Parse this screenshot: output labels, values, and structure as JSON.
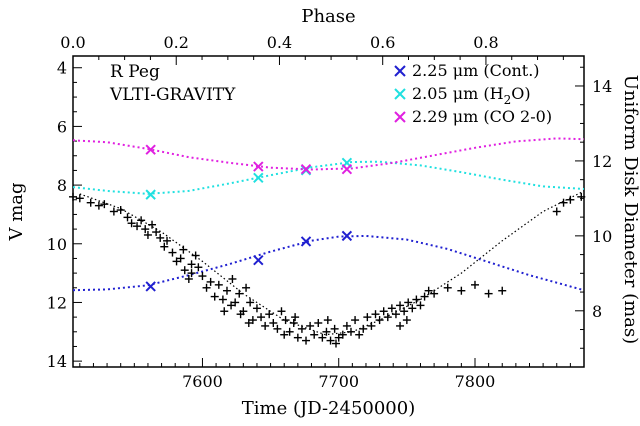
{
  "chart_data": {
    "type": "scatter",
    "title": "",
    "annotations": [
      "R Peg",
      "VLTI-GRAVITY"
    ],
    "xlabel": "Time (JD-2450000)",
    "ylabel": "V mag",
    "top_axis_label": "Phase",
    "right_axis_label": "Uniform Disk Diameter (mas)",
    "xlim": [
      7505,
      7880
    ],
    "ylim": [
      14.2,
      3.6
    ],
    "y_inverted": true,
    "top_xlim": [
      0.0,
      0.99
    ],
    "right_ylim": [
      6.5,
      14.8
    ],
    "x_ticks": [
      "7600",
      "7700",
      "7800"
    ],
    "x_tick_values": [
      7600,
      7700,
      7800
    ],
    "y_ticks": [
      "4",
      "6",
      "8",
      "10",
      "12",
      "14"
    ],
    "y_tick_values": [
      4,
      6,
      8,
      10,
      12,
      14
    ],
    "top_ticks": [
      "0.0",
      "0.2",
      "0.4",
      "0.6",
      "0.8"
    ],
    "top_tick_values": [
      0.0,
      0.2,
      0.4,
      0.6,
      0.8
    ],
    "right_ticks": [
      "8",
      "10",
      "12",
      "14"
    ],
    "right_tick_values": [
      8,
      10,
      12,
      14
    ],
    "legend_position": "top-right",
    "legend": [
      {
        "label_main": "2.25 μm (Cont.)",
        "label_pre": "2.25 μm (Cont.)",
        "label_sub": "",
        "label_post": "",
        "color": "#2020d0"
      },
      {
        "label_main": "2.05 μm (H2O)",
        "label_pre": "2.05 μm (H",
        "label_sub": "2",
        "label_post": "O)",
        "color": "#20e0e0"
      },
      {
        "label_main": "2.29 μm (CO 2-0)",
        "label_pre": "2.29 μm (CO 2-0)",
        "label_sub": "",
        "label_post": "",
        "color": "#e020e0"
      }
    ],
    "series": [
      {
        "name": "2.25 μm (Cont.)",
        "axis": "right",
        "color": "#2020d0",
        "points": [
          [
            7562,
            8.65
          ],
          [
            7641,
            9.35
          ],
          [
            7676,
            9.85
          ],
          [
            7706,
            10.0
          ]
        ],
        "fit": [
          [
            7505,
            8.55
          ],
          [
            7530,
            8.57
          ],
          [
            7560,
            8.68
          ],
          [
            7590,
            8.95
          ],
          [
            7620,
            9.25
          ],
          [
            7650,
            9.58
          ],
          [
            7680,
            9.87
          ],
          [
            7700,
            9.98
          ],
          [
            7720,
            10.0
          ],
          [
            7750,
            9.9
          ],
          [
            7780,
            9.65
          ],
          [
            7810,
            9.3
          ],
          [
            7840,
            8.95
          ],
          [
            7880,
            8.55
          ]
        ]
      },
      {
        "name": "2.05 μm (H2O)",
        "axis": "right",
        "color": "#20e0e0",
        "points": [
          [
            7562,
            11.1
          ],
          [
            7641,
            11.55
          ],
          [
            7676,
            11.75
          ],
          [
            7706,
            11.95
          ]
        ],
        "fit": [
          [
            7505,
            11.3
          ],
          [
            7530,
            11.2
          ],
          [
            7560,
            11.12
          ],
          [
            7590,
            11.2
          ],
          [
            7620,
            11.4
          ],
          [
            7650,
            11.62
          ],
          [
            7680,
            11.83
          ],
          [
            7710,
            11.97
          ],
          [
            7730,
            11.98
          ],
          [
            7760,
            11.88
          ],
          [
            7790,
            11.7
          ],
          [
            7820,
            11.5
          ],
          [
            7850,
            11.32
          ],
          [
            7880,
            11.25
          ]
        ]
      },
      {
        "name": "2.29 μm (CO 2-0)",
        "axis": "right",
        "color": "#e020e0",
        "points": [
          [
            7562,
            12.3
          ],
          [
            7641,
            11.85
          ],
          [
            7676,
            11.78
          ],
          [
            7706,
            11.78
          ]
        ],
        "fit": [
          [
            7505,
            12.55
          ],
          [
            7530,
            12.5
          ],
          [
            7560,
            12.32
          ],
          [
            7590,
            12.1
          ],
          [
            7620,
            11.95
          ],
          [
            7650,
            11.82
          ],
          [
            7680,
            11.77
          ],
          [
            7710,
            11.8
          ],
          [
            7740,
            11.95
          ],
          [
            7770,
            12.15
          ],
          [
            7800,
            12.35
          ],
          [
            7830,
            12.52
          ],
          [
            7860,
            12.6
          ],
          [
            7880,
            12.58
          ]
        ]
      }
    ],
    "lightcurve": {
      "name": "V mag",
      "axis": "left",
      "color": "#000000",
      "points": [
        [
          7505,
          8.4
        ],
        [
          7510,
          8.45
        ],
        [
          7518,
          8.6
        ],
        [
          7524,
          8.7
        ],
        [
          7528,
          8.65
        ],
        [
          7535,
          8.9
        ],
        [
          7540,
          8.85
        ],
        [
          7545,
          9.1
        ],
        [
          7548,
          9.3
        ],
        [
          7552,
          9.4
        ],
        [
          7555,
          9.2
        ],
        [
          7558,
          9.5
        ],
        [
          7560,
          9.7
        ],
        [
          7563,
          9.35
        ],
        [
          7566,
          9.6
        ],
        [
          7569,
          9.8
        ],
        [
          7572,
          10.1
        ],
        [
          7574,
          9.9
        ],
        [
          7578,
          10.3
        ],
        [
          7581,
          10.6
        ],
        [
          7584,
          10.5
        ],
        [
          7587,
          10.9
        ],
        [
          7590,
          11.2
        ],
        [
          7592,
          11.0
        ],
        [
          7595,
          10.4
        ],
        [
          7597,
          10.8
        ],
        [
          7600,
          11.1
        ],
        [
          7603,
          11.5
        ],
        [
          7606,
          11.3
        ],
        [
          7609,
          11.8
        ],
        [
          7612,
          11.4
        ],
        [
          7615,
          11.9
        ],
        [
          7618,
          11.6
        ],
        [
          7621,
          12.1
        ],
        [
          7624,
          12.0
        ],
        [
          7627,
          11.7
        ],
        [
          7630,
          12.3
        ],
        [
          7632,
          11.5
        ],
        [
          7635,
          12.0
        ],
        [
          7637,
          12.6
        ],
        [
          7640,
          12.2
        ],
        [
          7643,
          12.5
        ],
        [
          7646,
          12.8
        ],
        [
          7649,
          12.4
        ],
        [
          7652,
          12.7
        ],
        [
          7655,
          12.9
        ],
        [
          7658,
          12.3
        ],
        [
          7661,
          12.6
        ],
        [
          7664,
          13.0
        ],
        [
          7667,
          12.7
        ],
        [
          7670,
          13.2
        ],
        [
          7673,
          12.9
        ],
        [
          7676,
          13.3
        ],
        [
          7679,
          12.8
        ],
        [
          7682,
          13.1
        ],
        [
          7685,
          12.7
        ],
        [
          7688,
          13.2
        ],
        [
          7691,
          13.0
        ],
        [
          7694,
          13.3
        ],
        [
          7697,
          12.9
        ],
        [
          7700,
          13.2
        ],
        [
          7703,
          13.1
        ],
        [
          7706,
          12.8
        ],
        [
          7709,
          13.0
        ],
        [
          7712,
          12.6
        ],
        [
          7715,
          13.1
        ],
        [
          7718,
          12.9
        ],
        [
          7721,
          12.5
        ],
        [
          7724,
          12.8
        ],
        [
          7727,
          12.4
        ],
        [
          7730,
          12.6
        ],
        [
          7733,
          12.3
        ],
        [
          7736,
          12.5
        ],
        [
          7739,
          12.2
        ],
        [
          7742,
          12.4
        ],
        [
          7745,
          12.1
        ],
        [
          7748,
          12.3
        ],
        [
          7751,
          12.0
        ],
        [
          7754,
          12.2
        ],
        [
          7757,
          11.9
        ],
        [
          7760,
          12.1
        ],
        [
          7763,
          11.8
        ],
        [
          7766,
          11.6
        ],
        [
          7770,
          11.7
        ],
        [
          7780,
          11.5
        ],
        [
          7790,
          11.6
        ],
        [
          7800,
          11.4
        ],
        [
          7810,
          11.7
        ],
        [
          7820,
          11.6
        ],
        [
          7860,
          8.9
        ],
        [
          7865,
          8.6
        ],
        [
          7870,
          8.5
        ],
        [
          7878,
          8.4
        ],
        [
          7622,
          11.2
        ],
        [
          7628,
          12.4
        ],
        [
          7634,
          12.7
        ],
        [
          7660,
          13.1
        ],
        [
          7668,
          12.5
        ],
        [
          7692,
          12.6
        ],
        [
          7698,
          13.4
        ],
        [
          7586,
          10.2
        ],
        [
          7592,
          10.7
        ],
        [
          7616,
          12.3
        ],
        [
          7750,
          12.6
        ],
        [
          7745,
          12.8
        ]
      ],
      "fit": [
        [
          7510,
          8.3
        ],
        [
          7540,
          8.8
        ],
        [
          7570,
          9.6
        ],
        [
          7600,
          10.6
        ],
        [
          7630,
          11.7
        ],
        [
          7660,
          12.6
        ],
        [
          7690,
          13.1
        ],
        [
          7710,
          13.0
        ],
        [
          7730,
          12.6
        ],
        [
          7760,
          11.9
        ],
        [
          7790,
          11.0
        ],
        [
          7820,
          9.9
        ],
        [
          7850,
          8.9
        ],
        [
          7880,
          8.2
        ]
      ]
    }
  }
}
